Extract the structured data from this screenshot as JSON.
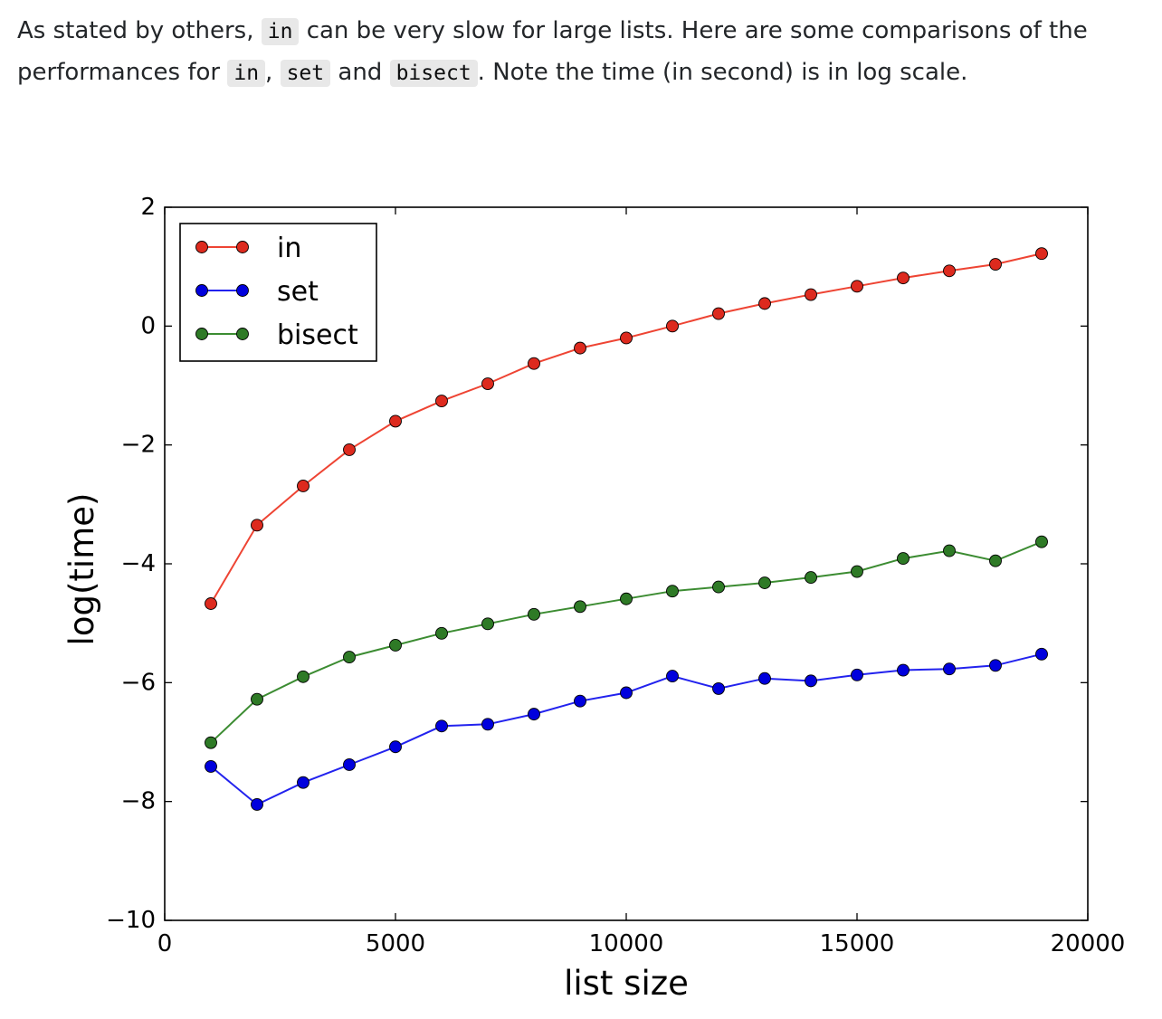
{
  "text": {
    "p1": "As stated by others, ",
    "code_in": "in",
    "p2": " can be very slow for large lists. Here are some comparisons of the performances for ",
    "code_in_2": "in",
    "p3": ", ",
    "code_set": "set",
    "p4": " and ",
    "code_bisect": "bisect",
    "p5": ". Note the time (in second) is in log scale."
  },
  "chart_data": {
    "type": "line",
    "title": "",
    "xlabel": "list size",
    "ylabel": "log(time)",
    "xlim": [
      0,
      20000
    ],
    "ylim": [
      -10,
      2
    ],
    "xticks": [
      0,
      5000,
      10000,
      15000,
      20000
    ],
    "yticks": [
      -10,
      -8,
      -6,
      -4,
      -2,
      0,
      2
    ],
    "xtick_labels": [
      "0",
      "5000",
      "10000",
      "15000",
      "20000"
    ],
    "ytick_labels": [
      "−10",
      "−8",
      "−6",
      "−4",
      "−2",
      "0",
      "2"
    ],
    "legend_position": "top-left",
    "grid": false,
    "x": [
      1000,
      2000,
      3000,
      4000,
      5000,
      6000,
      7000,
      8000,
      9000,
      10000,
      11000,
      12000,
      13000,
      14000,
      15000,
      16000,
      17000,
      18000,
      19000
    ],
    "series": [
      {
        "name": "in",
        "line_color": "#ee4433",
        "marker_color": "#dd2a1e",
        "values": [
          -4.67,
          -3.35,
          -2.69,
          -2.08,
          -1.6,
          -1.26,
          -0.97,
          -0.63,
          -0.37,
          -0.2,
          0.0,
          0.21,
          0.38,
          0.53,
          0.67,
          0.81,
          0.93,
          1.04,
          1.22
        ]
      },
      {
        "name": "set",
        "line_color": "#2222ee",
        "marker_color": "#0000dd",
        "values": [
          -7.41,
          -8.05,
          -7.68,
          -7.38,
          -7.08,
          -6.73,
          -6.7,
          -6.53,
          -6.31,
          -6.17,
          -5.89,
          -6.1,
          -5.93,
          -5.97,
          -5.87,
          -5.79,
          -5.77,
          -5.71,
          -5.52
        ]
      },
      {
        "name": "bisect",
        "line_color": "#3c8c32",
        "marker_color": "#2e7a26",
        "values": [
          -7.01,
          -6.28,
          -5.9,
          -5.57,
          -5.37,
          -5.17,
          -5.01,
          -4.85,
          -4.72,
          -4.59,
          -4.46,
          -4.39,
          -4.32,
          -4.23,
          -4.13,
          -3.91,
          -3.78,
          -3.95,
          -3.63
        ]
      }
    ]
  }
}
